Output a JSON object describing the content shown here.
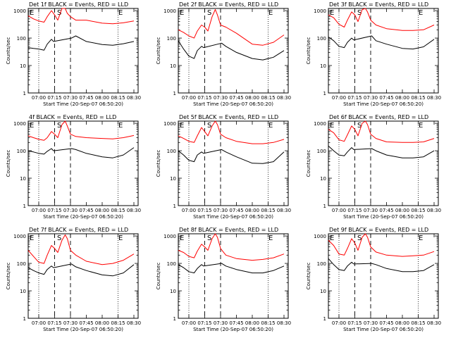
{
  "colors": {
    "events": "#000000",
    "lld": "#ff0000",
    "axis": "#000000",
    "background": "#ffffff"
  },
  "shared": {
    "xlabel": "Start Time (20-Sep-07 06:50:20)",
    "ylabel": "Counts/sec",
    "xticks": [
      "07:00",
      "07:15",
      "07:30",
      "07:45",
      "08:00",
      "08:15",
      "08:30"
    ],
    "yticks": [
      "1",
      "10",
      "100",
      "1000"
    ],
    "region_labels": [
      "E",
      "S",
      "E"
    ],
    "dotted_lines": [
      "07:00",
      "08:15"
    ],
    "dashed_lines": [
      "07:15",
      "07:30"
    ]
  },
  "chart_data": [
    {
      "type": "line",
      "title": "Det 1f BLACK = Events, RED = LLD",
      "yscale": "log",
      "ylim": [
        1,
        1200
      ],
      "series": [
        {
          "name": "Events",
          "color": "#000000",
          "x": [
            "06:50",
            "06:55",
            "07:00",
            "07:05",
            "07:08",
            "07:12",
            "07:14",
            "07:31",
            "07:35",
            "07:45",
            "08:00",
            "08:10",
            "08:20",
            "08:30"
          ],
          "y": [
            45,
            42,
            40,
            36,
            60,
            90,
            75,
            100,
            120,
            75,
            58,
            55,
            62,
            75
          ]
        },
        {
          "name": "LLD",
          "color": "#ff0000",
          "x": [
            "06:50",
            "06:55",
            "07:00",
            "07:05",
            "07:08",
            "07:12",
            "07:15",
            "07:18",
            "07:22",
            "07:25",
            "07:27",
            "07:30",
            "07:35",
            "07:45",
            "08:00",
            "08:10",
            "08:20",
            "08:30"
          ],
          "y": [
            650,
            500,
            420,
            380,
            600,
            1000,
            700,
            450,
            1200,
            1200,
            800,
            600,
            450,
            450,
            350,
            330,
            360,
            420
          ]
        }
      ]
    },
    {
      "type": "line",
      "title": "Det 2f BLACK = Events, RED = LLD",
      "yscale": "log",
      "ylim": [
        1,
        1200
      ],
      "series": [
        {
          "name": "Events",
          "color": "#000000",
          "x": [
            "06:50",
            "06:55",
            "07:00",
            "07:05",
            "07:08",
            "07:12",
            "07:14",
            "07:31",
            "07:35",
            "07:45",
            "08:00",
            "08:10",
            "08:20",
            "08:30"
          ],
          "y": [
            80,
            40,
            22,
            18,
            35,
            50,
            45,
            65,
            50,
            30,
            18,
            16,
            20,
            35
          ]
        },
        {
          "name": "LLD",
          "color": "#ff0000",
          "x": [
            "06:50",
            "06:55",
            "07:00",
            "07:05",
            "07:08",
            "07:12",
            "07:15",
            "07:18",
            "07:22",
            "07:25",
            "07:27",
            "07:30",
            "07:35",
            "07:45",
            "08:00",
            "08:10",
            "08:20",
            "08:30"
          ],
          "y": [
            200,
            160,
            120,
            100,
            180,
            300,
            250,
            180,
            600,
            1100,
            700,
            300,
            250,
            150,
            60,
            55,
            70,
            130
          ]
        }
      ]
    },
    {
      "type": "line",
      "title": "Det 3f BLACK = Events, RED = LLD",
      "yscale": "log",
      "ylim": [
        1,
        1200
      ],
      "series": [
        {
          "name": "Events",
          "color": "#000000",
          "x": [
            "06:50",
            "06:55",
            "07:00",
            "07:05",
            "07:08",
            "07:12",
            "07:14",
            "07:31",
            "07:35",
            "07:45",
            "08:00",
            "08:10",
            "08:20",
            "08:30"
          ],
          "y": [
            110,
            80,
            50,
            45,
            70,
            100,
            85,
            120,
            80,
            60,
            42,
            40,
            48,
            90
          ]
        },
        {
          "name": "LLD",
          "color": "#ff0000",
          "x": [
            "06:50",
            "06:55",
            "07:00",
            "07:05",
            "07:08",
            "07:12",
            "07:15",
            "07:18",
            "07:22",
            "07:25",
            "07:27",
            "07:30",
            "07:35",
            "07:45",
            "08:00",
            "08:10",
            "08:20",
            "08:30"
          ],
          "y": [
            700,
            550,
            320,
            250,
            450,
            900,
            700,
            400,
            1100,
            1200,
            900,
            450,
            300,
            220,
            190,
            190,
            200,
            300
          ]
        }
      ]
    },
    {
      "type": "line",
      "title": "4f BLACK = Events, RED = LLD",
      "yscale": "log",
      "ylim": [
        1,
        1200
      ],
      "series": [
        {
          "name": "Events",
          "color": "#000000",
          "x": [
            "06:50",
            "06:55",
            "07:00",
            "07:05",
            "07:08",
            "07:12",
            "07:14",
            "07:31",
            "07:35",
            "07:45",
            "08:00",
            "08:10",
            "08:20",
            "08:30"
          ],
          "y": [
            100,
            90,
            80,
            75,
            95,
            120,
            100,
            120,
            110,
            80,
            60,
            55,
            70,
            130
          ]
        },
        {
          "name": "LLD",
          "color": "#ff0000",
          "x": [
            "06:50",
            "06:55",
            "07:00",
            "07:05",
            "07:08",
            "07:12",
            "07:15",
            "07:18",
            "07:22",
            "07:25",
            "07:27",
            "07:30",
            "07:35",
            "07:45",
            "08:00",
            "08:10",
            "08:20",
            "08:30"
          ],
          "y": [
            350,
            300,
            260,
            240,
            300,
            500,
            400,
            300,
            900,
            1200,
            800,
            400,
            330,
            300,
            280,
            270,
            300,
            360
          ]
        }
      ]
    },
    {
      "type": "line",
      "title": "Det 5f BLACK = Events, RED = LLD",
      "yscale": "log",
      "ylim": [
        1,
        1200
      ],
      "series": [
        {
          "name": "Events",
          "color": "#000000",
          "x": [
            "06:50",
            "06:55",
            "07:00",
            "07:05",
            "07:08",
            "07:12",
            "07:14",
            "07:31",
            "07:35",
            "07:45",
            "08:00",
            "08:10",
            "08:20",
            "08:30"
          ],
          "y": [
            100,
            70,
            45,
            40,
            70,
            90,
            80,
            110,
            90,
            60,
            35,
            34,
            40,
            90
          ]
        },
        {
          "name": "LLD",
          "color": "#ff0000",
          "x": [
            "06:50",
            "06:55",
            "07:00",
            "07:05",
            "07:08",
            "07:12",
            "07:15",
            "07:18",
            "07:22",
            "07:25",
            "07:27",
            "07:30",
            "07:35",
            "07:45",
            "08:00",
            "08:10",
            "08:20",
            "08:30"
          ],
          "y": [
            350,
            280,
            220,
            200,
            350,
            700,
            500,
            350,
            800,
            1200,
            900,
            400,
            300,
            220,
            180,
            180,
            200,
            260
          ]
        }
      ]
    },
    {
      "type": "line",
      "title": "Det 6f BLACK = Events, RED = LLD",
      "yscale": "log",
      "ylim": [
        1,
        1200
      ],
      "series": [
        {
          "name": "Events",
          "color": "#000000",
          "x": [
            "06:50",
            "06:55",
            "07:00",
            "07:05",
            "07:08",
            "07:12",
            "07:14",
            "07:31",
            "07:35",
            "07:45",
            "08:00",
            "08:10",
            "08:20",
            "08:30"
          ],
          "y": [
            150,
            100,
            70,
            65,
            90,
            130,
            110,
            120,
            100,
            70,
            55,
            55,
            60,
            100
          ]
        },
        {
          "name": "LLD",
          "color": "#ff0000",
          "x": [
            "06:50",
            "06:55",
            "07:00",
            "07:05",
            "07:08",
            "07:12",
            "07:15",
            "07:18",
            "07:22",
            "07:25",
            "07:27",
            "07:30",
            "07:35",
            "07:45",
            "08:00",
            "08:10",
            "08:20",
            "08:30"
          ],
          "y": [
            600,
            450,
            250,
            220,
            380,
            800,
            600,
            350,
            1000,
            1200,
            900,
            400,
            280,
            210,
            200,
            200,
            210,
            280
          ]
        }
      ]
    },
    {
      "type": "line",
      "title": "Det 7f BLACK = Events, RED = LLD",
      "yscale": "log",
      "ylim": [
        1,
        1200
      ],
      "series": [
        {
          "name": "Events",
          "color": "#000000",
          "x": [
            "06:50",
            "06:55",
            "07:00",
            "07:05",
            "07:08",
            "07:12",
            "07:14",
            "07:31",
            "07:35",
            "07:45",
            "08:00",
            "08:10",
            "08:20",
            "08:30"
          ],
          "y": [
            70,
            55,
            45,
            40,
            60,
            80,
            70,
            95,
            75,
            55,
            38,
            35,
            45,
            90
          ]
        },
        {
          "name": "LLD",
          "color": "#ff0000",
          "x": [
            "06:50",
            "06:55",
            "07:00",
            "07:05",
            "07:08",
            "07:12",
            "07:15",
            "07:18",
            "07:22",
            "07:25",
            "07:27",
            "07:30",
            "07:35",
            "07:45",
            "08:00",
            "08:10",
            "08:20",
            "08:30"
          ],
          "y": [
            300,
            180,
            110,
            100,
            200,
            450,
            350,
            250,
            700,
            1100,
            800,
            300,
            200,
            120,
            90,
            100,
            130,
            220
          ]
        }
      ]
    },
    {
      "type": "line",
      "title": "Det 8f BLACK = Events, RED = LLD",
      "yscale": "log",
      "ylim": [
        1,
        1200
      ],
      "series": [
        {
          "name": "Events",
          "color": "#000000",
          "x": [
            "06:50",
            "06:55",
            "07:00",
            "07:05",
            "07:08",
            "07:12",
            "07:14",
            "07:31",
            "07:35",
            "07:45",
            "08:00",
            "08:10",
            "08:20",
            "08:30"
          ],
          "y": [
            90,
            70,
            50,
            45,
            65,
            90,
            80,
            100,
            80,
            60,
            45,
            45,
            55,
            80
          ]
        },
        {
          "name": "LLD",
          "color": "#ff0000",
          "x": [
            "06:50",
            "06:55",
            "07:00",
            "07:05",
            "07:08",
            "07:12",
            "07:15",
            "07:18",
            "07:22",
            "07:25",
            "07:27",
            "07:30",
            "07:35",
            "07:45",
            "08:00",
            "08:10",
            "08:20",
            "08:30"
          ],
          "y": [
            300,
            250,
            180,
            160,
            280,
            500,
            400,
            300,
            800,
            1200,
            900,
            350,
            200,
            150,
            130,
            140,
            160,
            220
          ]
        }
      ]
    },
    {
      "type": "line",
      "title": "Det 9f BLACK = Events, RED = LLD",
      "yscale": "log",
      "ylim": [
        1,
        1200
      ],
      "series": [
        {
          "name": "Events",
          "color": "#000000",
          "x": [
            "06:50",
            "06:55",
            "07:00",
            "07:05",
            "07:08",
            "07:12",
            "07:14",
            "07:31",
            "07:35",
            "07:45",
            "08:00",
            "08:10",
            "08:20",
            "08:30"
          ],
          "y": [
            150,
            90,
            60,
            55,
            80,
            110,
            95,
            100,
            90,
            65,
            50,
            50,
            55,
            90
          ]
        },
        {
          "name": "LLD",
          "color": "#ff0000",
          "x": [
            "06:50",
            "06:55",
            "07:00",
            "07:05",
            "07:08",
            "07:12",
            "07:15",
            "07:18",
            "07:22",
            "07:25",
            "07:27",
            "07:30",
            "07:35",
            "07:45",
            "08:00",
            "08:10",
            "08:20",
            "08:30"
          ],
          "y": [
            700,
            450,
            220,
            200,
            350,
            800,
            550,
            300,
            900,
            1200,
            900,
            400,
            260,
            200,
            180,
            190,
            200,
            270
          ]
        }
      ]
    }
  ]
}
